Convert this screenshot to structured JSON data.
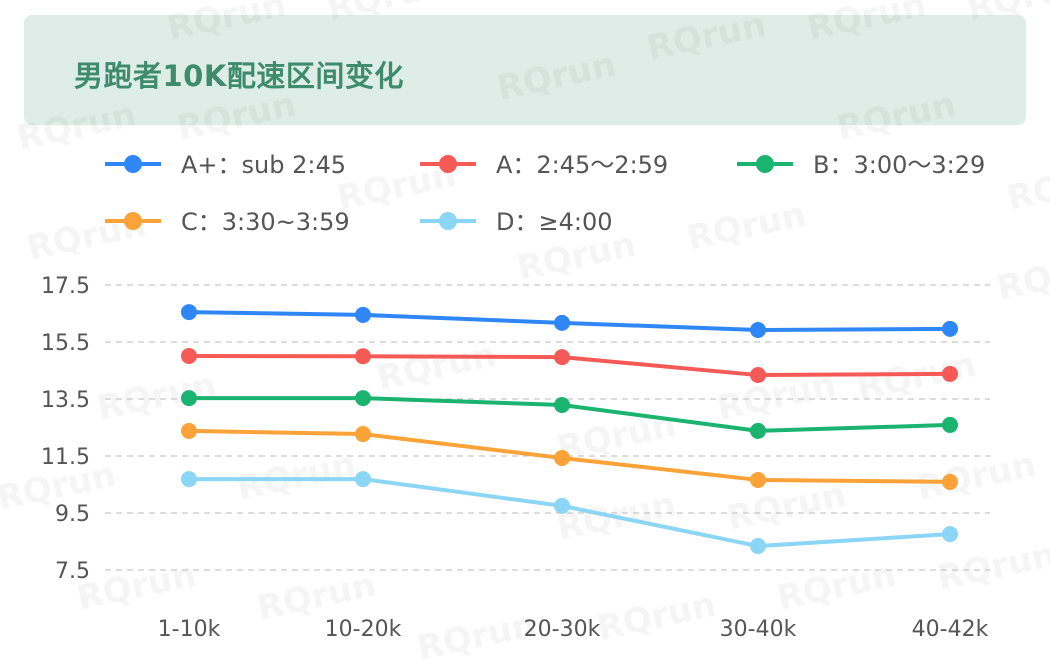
{
  "watermark": "RQrun",
  "chart_data": {
    "type": "line",
    "title": "男跑者10K配速区间变化",
    "xlabel": "",
    "ylabel": "",
    "categories": [
      "1-10k",
      "10-20k",
      "20-30k",
      "30-40k",
      "40-42k"
    ],
    "ylim": [
      7.5,
      17.5
    ],
    "yticks": [
      "17.5",
      "15.5",
      "13.5",
      "11.5",
      "9.5",
      "7.5"
    ],
    "grid": true,
    "legend_position": "top",
    "series": [
      {
        "name": "A+：sub 2:45",
        "color": "#2f87f5",
        "values": [
          16.55,
          16.45,
          16.17,
          15.92,
          15.96
        ]
      },
      {
        "name": "A：2:45～2:59",
        "color": "#f65a57",
        "values": [
          15.01,
          15.0,
          14.97,
          14.34,
          14.38
        ]
      },
      {
        "name": "B：3:00～3:29",
        "color": "#1ab36f",
        "values": [
          13.53,
          13.53,
          13.29,
          12.38,
          12.59
        ]
      },
      {
        "name": "C：3:30~3:59",
        "color": "#fba239",
        "values": [
          12.38,
          12.27,
          11.43,
          10.66,
          10.59
        ]
      },
      {
        "name": "D：≥4:00",
        "color": "#8bd6f4",
        "values": [
          10.69,
          10.69,
          9.75,
          8.34,
          8.76
        ]
      }
    ]
  }
}
